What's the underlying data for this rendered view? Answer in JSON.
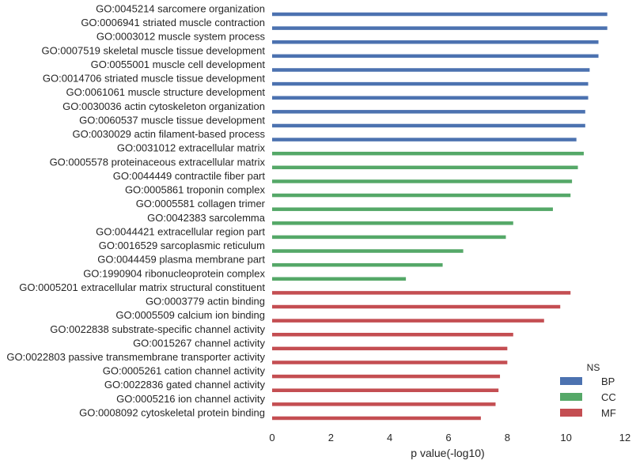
{
  "chart_data": {
    "type": "bar",
    "orientation": "horizontal",
    "xlabel": "p value(-log10)",
    "ylabel": "",
    "xlim": [
      0,
      12
    ],
    "xticks": [
      "0",
      "2",
      "4",
      "6",
      "8",
      "10",
      "12"
    ],
    "grid": false,
    "legend": {
      "title": "NS",
      "placement": "bottom-right",
      "entries": [
        {
          "name": "BP",
          "color": "#4c72b0"
        },
        {
          "name": "CC",
          "color": "#55a868"
        },
        {
          "name": "MF",
          "color": "#c44e52"
        }
      ]
    },
    "categories": [
      "GO:0045214 sarcomere organization",
      "GO:0006941 striated muscle contraction",
      "GO:0003012 muscle system process",
      "GO:0007519 skeletal muscle tissue development",
      "GO:0055001 muscle cell development",
      "GO:0014706 striated muscle tissue development",
      "GO:0061061 muscle structure development",
      "GO:0030036 actin cytoskeleton organization",
      "GO:0060537 muscle tissue development",
      "GO:0030029 actin filament-based process",
      "GO:0031012 extracellular matrix",
      "GO:0005578 proteinaceous extracellular matrix",
      "GO:0044449 contractile fiber part",
      "GO:0005861 troponin complex",
      "GO:0005581 collagen trimer",
      "GO:0042383 sarcolemma",
      "GO:0044421 extracellular region part",
      "GO:0016529 sarcoplasmic reticulum",
      "GO:0044459 plasma membrane part",
      "GO:1990904 ribonucleoprotein complex",
      "GO:0005201 extracellular matrix structural constituent",
      "GO:0003779 actin binding",
      "GO:0005509 calcium ion binding",
      "GO:0022838 substrate-specific channel activity",
      "GO:0015267 channel activity",
      "GO:0022803 passive transmembrane transporter activity",
      "GO:0005261 cation channel activity",
      "GO:0022836 gated channel activity",
      "GO:0005216 ion channel activity",
      "GO:0008092 cytoskeletal protein binding"
    ],
    "groups": [
      "BP",
      "BP",
      "BP",
      "BP",
      "BP",
      "BP",
      "BP",
      "BP",
      "BP",
      "BP",
      "CC",
      "CC",
      "CC",
      "CC",
      "CC",
      "CC",
      "CC",
      "CC",
      "CC",
      "CC",
      "MF",
      "MF",
      "MF",
      "MF",
      "MF",
      "MF",
      "MF",
      "MF",
      "MF",
      "MF"
    ],
    "values": [
      11.4,
      11.4,
      11.1,
      11.1,
      10.8,
      10.75,
      10.75,
      10.65,
      10.65,
      10.35,
      10.6,
      10.4,
      10.2,
      10.15,
      9.55,
      8.2,
      7.95,
      6.5,
      5.8,
      4.55,
      10.15,
      9.8,
      9.25,
      8.2,
      8.0,
      8.0,
      7.75,
      7.7,
      7.6,
      7.1
    ]
  }
}
